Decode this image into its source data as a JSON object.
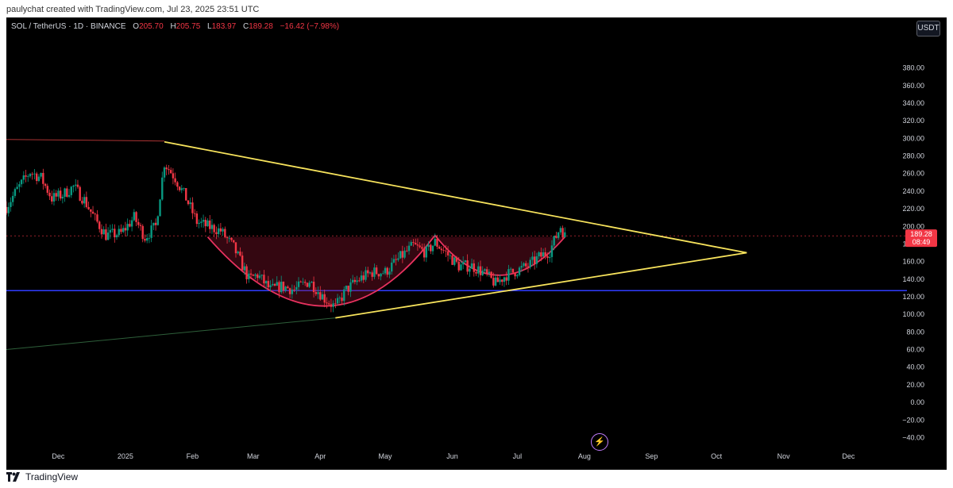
{
  "credit": "paulychat created with TradingView.com, Jul 23, 2025 23:51 UTC",
  "symbol": {
    "name": "SOL / TetherUS · 1D · BINANCE",
    "o_label": "O",
    "o": "205.70",
    "h_label": "H",
    "h": "205.75",
    "l_label": "L",
    "l": "183.97",
    "c_label": "C",
    "c": "189.28",
    "change": "−16.42 (−7.98%)"
  },
  "currency_button": "USDT",
  "price_badge": {
    "price": "189.28",
    "countdown": "08:49"
  },
  "footer_brand": "TradingView",
  "colors": {
    "up": "#089981",
    "down": "#f23645",
    "trend": "#f7e35c",
    "support": "#2f3cff",
    "pattern": "#e8325f",
    "badge": "#f23645"
  },
  "chart_data": {
    "type": "candlestick",
    "y_ticks": [
      "380.00",
      "360.00",
      "340.00",
      "320.00",
      "300.00",
      "280.00",
      "260.00",
      "240.00",
      "220.00",
      "200.00",
      "180.00",
      "160.00",
      "140.00",
      "120.00",
      "100.00",
      "80.00",
      "60.00",
      "40.00",
      "20.00",
      "0.00",
      "−20.00",
      "−40.00"
    ],
    "ylim": [
      -45,
      395
    ],
    "x_ticks": [
      "Dec",
      "2025",
      "Feb",
      "Mar",
      "Apr",
      "May",
      "Jun",
      "Jul",
      "Aug",
      "Sep",
      "Oct",
      "Nov",
      "Dec"
    ],
    "x_tick_dates": [
      "2024-12-01",
      "2025-01-01",
      "2025-02-01",
      "2025-03-01",
      "2025-04-01",
      "2025-05-01",
      "2025-06-01",
      "2025-07-01",
      "2025-08-01",
      "2025-09-01",
      "2025-10-01",
      "2025-11-01",
      "2025-12-01"
    ],
    "xlim": [
      "2024-11-07",
      "2025-12-28"
    ],
    "price_path": [
      [
        "2024-11-07",
        222
      ],
      [
        "2024-11-12",
        242
      ],
      [
        "2024-11-18",
        262
      ],
      [
        "2024-11-23",
        255
      ],
      [
        "2024-11-28",
        232
      ],
      [
        "2024-12-03",
        236
      ],
      [
        "2024-12-08",
        245
      ],
      [
        "2024-12-13",
        230
      ],
      [
        "2024-12-18",
        208
      ],
      [
        "2024-12-23",
        190
      ],
      [
        "2024-12-30",
        192
      ],
      [
        "2025-01-05",
        210
      ],
      [
        "2025-01-10",
        188
      ],
      [
        "2025-01-15",
        200
      ],
      [
        "2025-01-19",
        272
      ],
      [
        "2025-01-24",
        255
      ],
      [
        "2025-01-29",
        232
      ],
      [
        "2025-02-03",
        205
      ],
      [
        "2025-02-08",
        200
      ],
      [
        "2025-02-14",
        195
      ],
      [
        "2025-02-20",
        176
      ],
      [
        "2025-02-27",
        140
      ],
      [
        "2025-03-03",
        145
      ],
      [
        "2025-03-09",
        128
      ],
      [
        "2025-03-14",
        132
      ],
      [
        "2025-03-20",
        128
      ],
      [
        "2025-03-27",
        138
      ],
      [
        "2025-04-03",
        118
      ],
      [
        "2025-04-08",
        108
      ],
      [
        "2025-04-13",
        128
      ],
      [
        "2025-04-19",
        140
      ],
      [
        "2025-04-25",
        148
      ],
      [
        "2025-05-01",
        148
      ],
      [
        "2025-05-08",
        165
      ],
      [
        "2025-05-14",
        178
      ],
      [
        "2025-05-20",
        170
      ],
      [
        "2025-05-24",
        182
      ],
      [
        "2025-05-29",
        170
      ],
      [
        "2025-06-04",
        155
      ],
      [
        "2025-06-10",
        155
      ],
      [
        "2025-06-15",
        148
      ],
      [
        "2025-06-21",
        135
      ],
      [
        "2025-06-26",
        145
      ],
      [
        "2025-07-01",
        150
      ],
      [
        "2025-07-06",
        155
      ],
      [
        "2025-07-11",
        165
      ],
      [
        "2025-07-16",
        172
      ],
      [
        "2025-07-21",
        200
      ],
      [
        "2025-07-23",
        189
      ]
    ],
    "wedge_upper": [
      [
        "2025-01-19",
        296
      ],
      [
        "2025-10-15",
        170
      ]
    ],
    "wedge_lower": [
      [
        "2025-04-08",
        96
      ],
      [
        "2025-10-15",
        170
      ]
    ],
    "support_level": 127,
    "resistance_level": 297,
    "neckline": 188,
    "last_close": 189.28
  }
}
